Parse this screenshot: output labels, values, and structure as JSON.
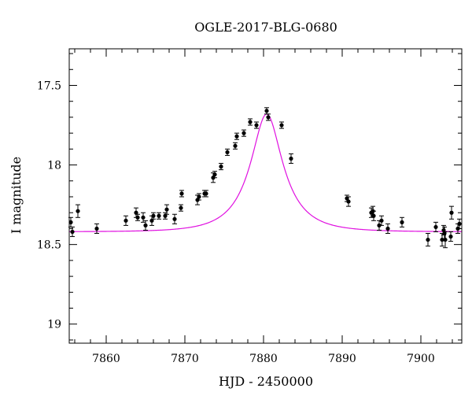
{
  "chart_data": {
    "type": "scatter",
    "title": "OGLE-2017-BLG-0680",
    "xlabel": "HJD - 2450000",
    "ylabel": "I magnitude",
    "xlim": [
      7855.3,
      7905.2
    ],
    "ylim": [
      19.12,
      17.27
    ],
    "y_inverted": true,
    "x_ticks": [
      7860,
      7870,
      7880,
      7890,
      7900
    ],
    "x_tick_labels": [
      "7860",
      "7870",
      "7880",
      "7890",
      "7900"
    ],
    "y_ticks": [
      17.5,
      18,
      18.5,
      19
    ],
    "y_tick_labels": [
      "17.5",
      "18",
      "18.5",
      "19"
    ],
    "grid": false,
    "colors": {
      "points": "#000000",
      "model": "#e010e0"
    },
    "series": [
      {
        "type": "points_with_errorbars",
        "x": [
          7855.5,
          7855.7,
          7856.4,
          7858.8,
          7862.5,
          7863.8,
          7864.0,
          7864.7,
          7865.0,
          7865.8,
          7866.0,
          7866.7,
          7867.5,
          7867.7,
          7868.7,
          7869.5,
          7869.6,
          7871.6,
          7871.8,
          7872.5,
          7872.7,
          7873.6,
          7873.8,
          7874.6,
          7875.4,
          7876.4,
          7876.6,
          7877.5,
          7878.3,
          7879.1,
          7880.4,
          7880.6,
          7882.3,
          7883.5,
          7890.6,
          7890.8,
          7893.7,
          7893.9,
          7894.0,
          7894.7,
          7895.0,
          7895.8,
          7897.6,
          7900.9,
          7901.9,
          7902.7,
          7902.9,
          7903.0,
          7903.1,
          7903.8,
          7903.9,
          7904.7,
          7904.9
        ],
        "y": [
          18.36,
          18.42,
          18.29,
          18.4,
          18.35,
          18.3,
          18.33,
          18.33,
          18.38,
          18.35,
          18.32,
          18.32,
          18.32,
          18.28,
          18.34,
          18.27,
          18.18,
          18.22,
          18.2,
          18.18,
          18.18,
          18.08,
          18.06,
          18.01,
          17.92,
          17.88,
          17.82,
          17.8,
          17.73,
          17.75,
          17.66,
          17.7,
          17.75,
          17.96,
          18.21,
          18.23,
          18.3,
          18.29,
          18.32,
          18.38,
          18.35,
          18.4,
          18.36,
          18.47,
          18.39,
          18.47,
          18.41,
          18.43,
          18.47,
          18.45,
          18.3,
          18.4,
          18.37
        ],
        "yerr": [
          0.03,
          0.03,
          0.04,
          0.03,
          0.03,
          0.03,
          0.02,
          0.03,
          0.03,
          0.03,
          0.02,
          0.02,
          0.02,
          0.03,
          0.03,
          0.02,
          0.02,
          0.03,
          0.02,
          0.02,
          0.02,
          0.03,
          0.02,
          0.02,
          0.02,
          0.02,
          0.02,
          0.02,
          0.02,
          0.02,
          0.02,
          0.02,
          0.02,
          0.03,
          0.02,
          0.03,
          0.03,
          0.03,
          0.03,
          0.03,
          0.03,
          0.03,
          0.03,
          0.04,
          0.03,
          0.04,
          0.03,
          0.04,
          0.05,
          0.03,
          0.04,
          0.03,
          0.03
        ]
      },
      {
        "type": "model_line",
        "t0": 7880.4,
        "baseline": 18.42,
        "peak": 17.68,
        "u0": 0.42,
        "tE": 4.9
      }
    ]
  }
}
